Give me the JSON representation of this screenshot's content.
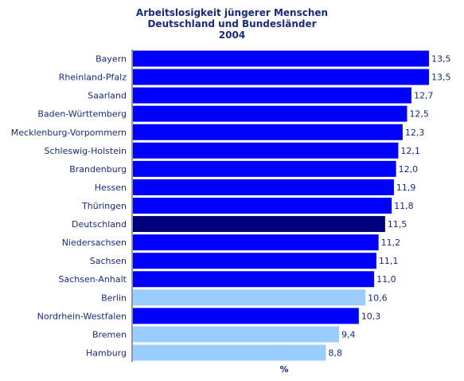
{
  "chart_data": {
    "type": "bar",
    "orientation": "horizontal",
    "title_lines": [
      "Arbeitslosigkeit jüngerer Menschen",
      "Deutschland und Bundesländer",
      "2004"
    ],
    "xlabel": "%",
    "xlim": [
      0,
      13.5
    ],
    "categories": [
      "Bayern",
      "Rheinland-Pfalz",
      "Saarland",
      "Baden-Württemberg",
      "Mecklenburg-Vorpommern",
      "Schleswig-Holstein",
      "Brandenburg",
      "Hessen",
      "Thüringen",
      "Deutschland",
      "Niedersachsen",
      "Sachsen",
      "Sachsen-Anhalt",
      "Berlin",
      "Nordrhein-Westfalen",
      "Bremen",
      "Hamburg"
    ],
    "values": [
      13.5,
      13.5,
      12.7,
      12.5,
      12.3,
      12.1,
      12.0,
      11.9,
      11.8,
      11.5,
      11.2,
      11.1,
      11.0,
      10.6,
      10.3,
      9.4,
      8.8
    ],
    "value_labels": [
      "13,5",
      "13,5",
      "12,7",
      "12,5",
      "12,3",
      "12,1",
      "12,0",
      "11,9",
      "11,8",
      "11,5",
      "11,2",
      "11,1",
      "11,0",
      "10,6",
      "10,3",
      "9,4",
      "8,8"
    ],
    "bar_colors": [
      "#0000ff",
      "#0000ff",
      "#0000ff",
      "#0000ff",
      "#0000ff",
      "#0000ff",
      "#0000ff",
      "#0000ff",
      "#0000ff",
      "#00007a",
      "#0000ff",
      "#0000ff",
      "#0000ff",
      "#99ccff",
      "#0000ff",
      "#99ccff",
      "#99ccff"
    ],
    "axis_color": "#1a2a7a"
  }
}
